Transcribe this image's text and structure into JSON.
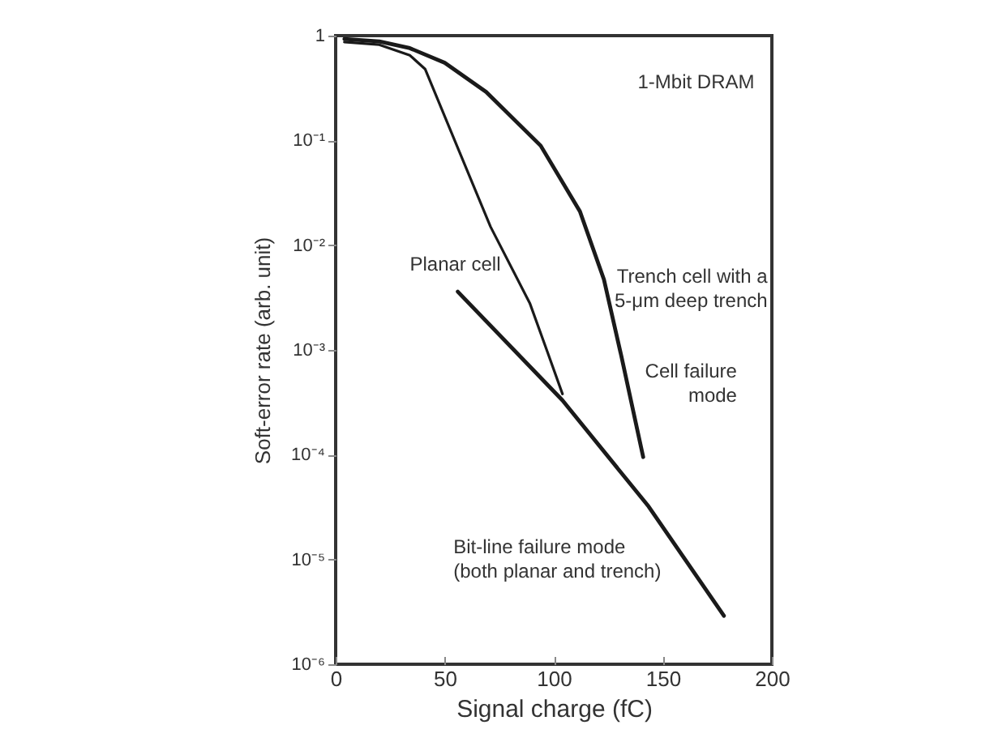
{
  "chart_data": {
    "type": "line",
    "xlabel": "Signal charge (fC)",
    "ylabel": "Soft-error rate (arb. unit)",
    "log": "y",
    "grid": false,
    "marker": "none",
    "line_style": "solid",
    "xlim": [
      0,
      200
    ],
    "xticks": [
      0,
      50,
      100,
      150,
      200
    ],
    "ylim": [
      1e-06,
      1
    ],
    "yticks": [
      {
        "value": 1,
        "label": "1"
      },
      {
        "value": 0.1,
        "label": "10⁻¹"
      },
      {
        "value": 0.01,
        "label": "10⁻²"
      },
      {
        "value": 0.001,
        "label": "10⁻³"
      },
      {
        "value": 0.0001,
        "label": "10⁻⁴"
      },
      {
        "value": 1e-05,
        "label": "10⁻⁵"
      },
      {
        "value": 1e-06,
        "label": "10⁻⁶"
      }
    ],
    "series": [
      {
        "color": "#1a1a1a",
        "x": [
          4,
          20,
          34,
          50,
          69,
          94,
          112,
          123,
          131,
          141
        ],
        "values": [
          0.93,
          0.88,
          0.76,
          0.55,
          0.29,
          0.089,
          0.021,
          0.0047,
          0.00087,
          9.5e-05
        ]
      },
      {
        "color": "#1a1a1a",
        "x": [
          4,
          20,
          34,
          41,
          56.5,
          71,
          89,
          97,
          104
        ],
        "values": [
          0.87,
          0.82,
          0.65,
          0.48,
          0.08,
          0.015,
          0.0028,
          0.00097,
          0.00038
        ]
      },
      {
        "color": "#1a1a1a",
        "x": [
          56,
          104,
          143.5,
          178
        ],
        "values": [
          0.0036,
          0.00033,
          3.2e-05,
          2.9e-06
        ]
      }
    ],
    "annotations": [
      "1-Mbit DRAM",
      "Trench cell with a\n5-μm deep trench",
      "Planar cell",
      "Cell failure\nmode",
      "Bit-line failure mode\n(both planar and trench)"
    ]
  }
}
